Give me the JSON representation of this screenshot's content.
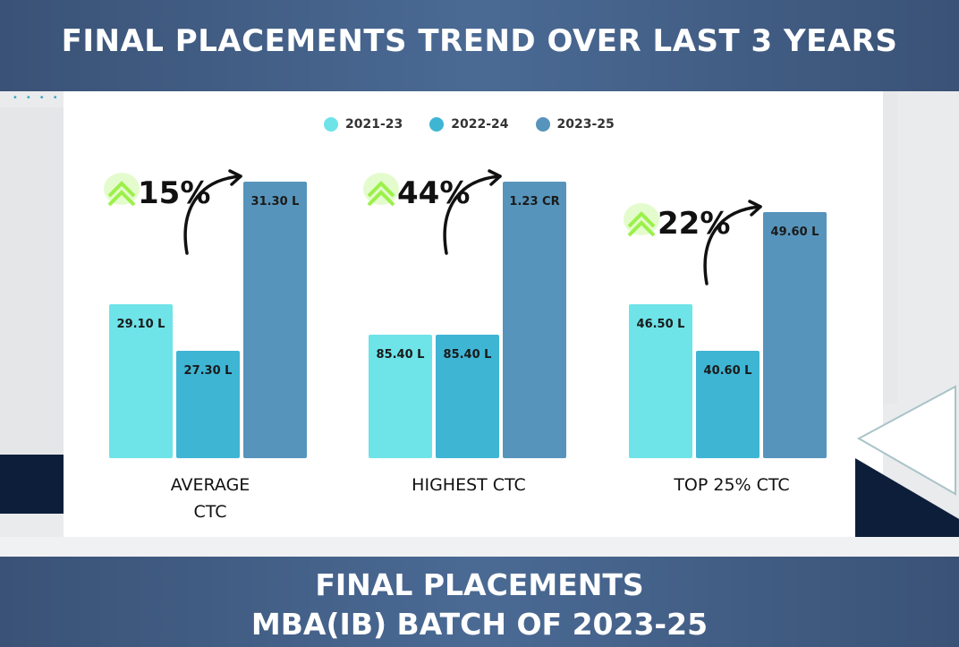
{
  "header": {
    "title": "FINAL PLACEMENTS TREND OVER LAST 3 YEARS"
  },
  "footer": {
    "line1": "FINAL PLACEMENTS",
    "line2": "MBA(IB) BATCH OF 2023-25"
  },
  "colors": {
    "s1": "#6ee3e8",
    "s2": "#3fb5d4",
    "s3": "#5694bb",
    "growth": "#9cf04a"
  },
  "chart_data": {
    "type": "bar",
    "legend_position": "top",
    "grid": false,
    "series": [
      {
        "name": "2021-23"
      },
      {
        "name": "2022-24"
      },
      {
        "name": "2023-25"
      }
    ],
    "groups": [
      {
        "category": "AVERAGE",
        "category2": "CTC",
        "values": [
          29.1,
          27.3,
          31.3
        ],
        "labels": [
          "29.10 L",
          "27.30 L",
          "31.30 L"
        ],
        "growth": "15%"
      },
      {
        "category": "HIGHEST CTC",
        "category2": "",
        "values": [
          85.4,
          85.4,
          123.0
        ],
        "labels": [
          "85.40 L",
          "85.40 L",
          "1.23 CR"
        ],
        "growth": "44%"
      },
      {
        "category": "TOP 25% CTC",
        "category2": "",
        "values": [
          46.5,
          40.6,
          49.6
        ],
        "labels": [
          "46.50 L",
          "40.60 L",
          "49.60 L"
        ],
        "growth": "22%"
      }
    ]
  }
}
